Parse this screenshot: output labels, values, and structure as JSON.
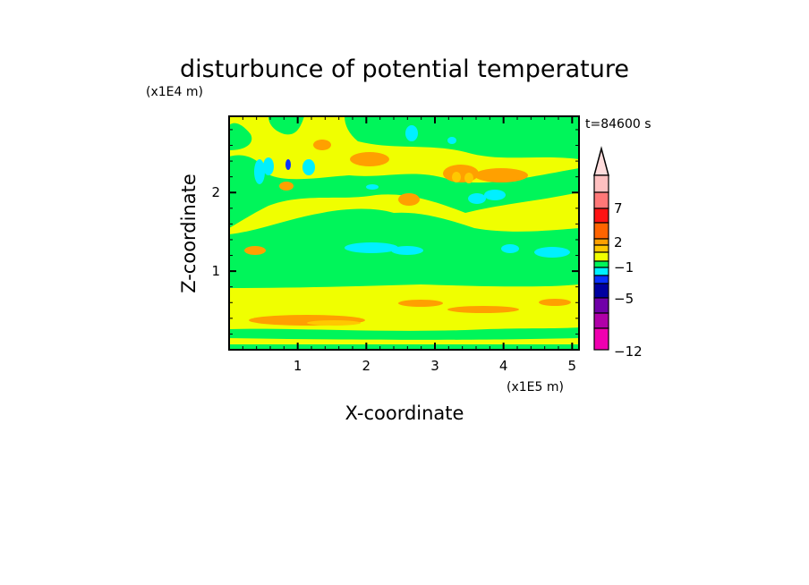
{
  "chart_data": {
    "type": "heatmap",
    "subtype": "filled-contour",
    "title": "disturbunce of potential temperature",
    "xlabel": "X-coordinate",
    "ylabel": "Z-coordinate",
    "x_scale_label": "(x1E5 m)",
    "y_scale_label": "(x1E4 m)",
    "time_label": "t=84600 s",
    "xlim": [
      0,
      5.1
    ],
    "ylim": [
      0,
      2.97
    ],
    "x_ticks": [
      1,
      2,
      3,
      4,
      5
    ],
    "y_ticks": [
      1,
      2
    ],
    "colorbar": {
      "extend": "max",
      "labels": [
        {
          "text": "7",
          "value": 7
        },
        {
          "text": "2",
          "value": 2
        },
        {
          "text": "−1",
          "value": -1
        },
        {
          "text": "−5",
          "value": -5
        },
        {
          "text": "−12",
          "value": -12
        }
      ],
      "over_color": "#ffdcdc",
      "colors_top_to_bottom": [
        "#ffc0c0",
        "#ff7878",
        "#ff1414",
        "#ff6400",
        "#ffa000",
        "#ffc800",
        "#f0ff00",
        "#00f55a",
        "#00f0ff",
        "#0a32ff",
        "#0000a0",
        "#7000a8",
        "#b000a8",
        "#f000b0"
      ]
    },
    "dominant_values": "field mostly between -1 and 2 (green/yellow), with positive orange bands near z=0.4 and z=2.2 and negative cyan patches near z=1.3 and z=2.4"
  }
}
